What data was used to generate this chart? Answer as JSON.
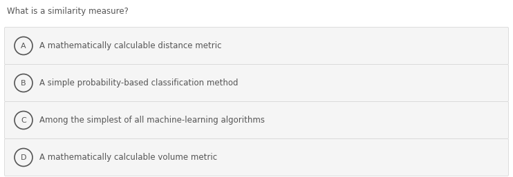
{
  "question": "What is a similarity measure?",
  "options": [
    {
      "label": "A",
      "text": "A mathematically calculable distance metric"
    },
    {
      "label": "B",
      "text": "A simple probability-based classification method"
    },
    {
      "label": "C",
      "text": "Among the simplest of all machine-learning algorithms"
    },
    {
      "label": "D",
      "text": "A mathematically calculable volume metric"
    }
  ],
  "bg_color": "#ffffff",
  "option_bg_color": "#f5f5f5",
  "option_border_color": "#d8d8d8",
  "question_color": "#555555",
  "label_color": "#555555",
  "text_color": "#555555",
  "question_fontsize": 8.5,
  "option_fontsize": 8.5,
  "label_fontsize": 8.0,
  "fig_width": 7.42,
  "fig_height": 2.57,
  "dpi": 100
}
